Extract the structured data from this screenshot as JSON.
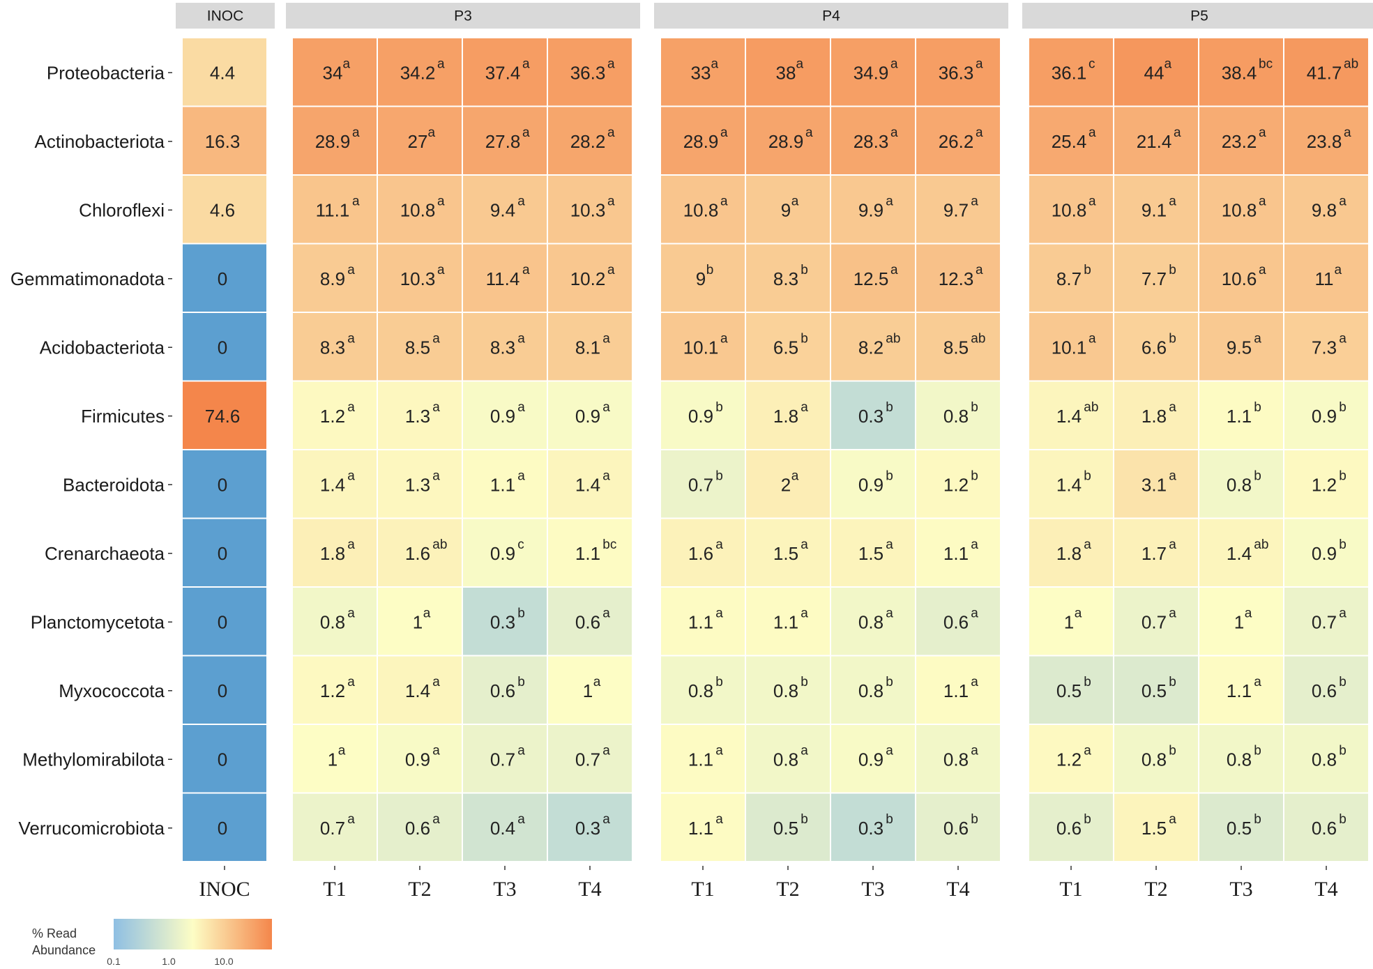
{
  "chart_data": {
    "type": "heatmap",
    "panels": [
      {
        "name": "INOC",
        "columns": [
          "INOC"
        ]
      },
      {
        "name": "P3",
        "columns": [
          "T1",
          "T2",
          "T3",
          "T4"
        ]
      },
      {
        "name": "P4",
        "columns": [
          "T1",
          "T2",
          "T3",
          "T4"
        ]
      },
      {
        "name": "P5",
        "columns": [
          "T1",
          "T2",
          "T3",
          "T4"
        ]
      }
    ],
    "rows": [
      "Proteobacteria",
      "Actinobacteriota",
      "Chloroflexi",
      "Gemmatimonadota",
      "Acidobacteriota",
      "Firmicutes",
      "Bacteroidota",
      "Crenarchaeota",
      "Planctomycetota",
      "Myxococcota",
      "Methylomirabilota",
      "Verrucomicrobiota"
    ],
    "values": [
      [
        4.4,
        34,
        34.2,
        37.4,
        36.3,
        33,
        38,
        34.9,
        36.3,
        36.1,
        44,
        38.4,
        41.7
      ],
      [
        16.3,
        28.9,
        27,
        27.8,
        28.2,
        28.9,
        28.9,
        28.3,
        26.2,
        25.4,
        21.4,
        23.2,
        23.8
      ],
      [
        4.6,
        11.1,
        10.8,
        9.4,
        10.3,
        10.8,
        9,
        9.9,
        9.7,
        10.8,
        9.1,
        10.8,
        9.8
      ],
      [
        0,
        8.9,
        10.3,
        11.4,
        10.2,
        9,
        8.3,
        12.5,
        12.3,
        8.7,
        7.7,
        10.6,
        11
      ],
      [
        0,
        8.3,
        8.5,
        8.3,
        8.1,
        10.1,
        6.5,
        8.2,
        8.5,
        10.1,
        6.6,
        9.5,
        7.3
      ],
      [
        74.6,
        1.2,
        1.3,
        0.9,
        0.9,
        0.9,
        1.8,
        0.3,
        0.8,
        1.4,
        1.8,
        1.1,
        0.9
      ],
      [
        0,
        1.4,
        1.3,
        1.1,
        1.4,
        0.7,
        2,
        0.9,
        1.2,
        1.4,
        3.1,
        0.8,
        1.2
      ],
      [
        0,
        1.8,
        1.6,
        0.9,
        1.1,
        1.6,
        1.5,
        1.5,
        1.1,
        1.8,
        1.7,
        1.4,
        0.9
      ],
      [
        0,
        0.8,
        1,
        0.3,
        0.6,
        1.1,
        1.1,
        0.8,
        0.6,
        1,
        0.7,
        1,
        0.7
      ],
      [
        0,
        1.2,
        1.4,
        0.6,
        1,
        0.8,
        0.8,
        0.8,
        1.1,
        0.5,
        0.5,
        1.1,
        0.6
      ],
      [
        0,
        1,
        0.9,
        0.7,
        0.7,
        1.1,
        0.8,
        0.9,
        0.8,
        1.2,
        0.8,
        0.8,
        0.8
      ],
      [
        0,
        0.7,
        0.6,
        0.4,
        0.3,
        1.1,
        0.5,
        0.3,
        0.6,
        0.6,
        1.5,
        0.5,
        0.6
      ]
    ],
    "letters": [
      [
        "",
        "a",
        "a",
        "a",
        "a",
        "a",
        "a",
        "a",
        "a",
        "c",
        "a",
        "bc",
        "ab"
      ],
      [
        "",
        "a",
        "a",
        "a",
        "a",
        "a",
        "a",
        "a",
        "a",
        "a",
        "a",
        "a",
        "a"
      ],
      [
        "",
        "a",
        "a",
        "a",
        "a",
        "a",
        "a",
        "a",
        "a",
        "a",
        "a",
        "a",
        "a"
      ],
      [
        "",
        "a",
        "a",
        "a",
        "a",
        "b",
        "b",
        "a",
        "a",
        "b",
        "b",
        "a",
        "a"
      ],
      [
        "",
        "a",
        "a",
        "a",
        "a",
        "a",
        "b",
        "ab",
        "ab",
        "a",
        "b",
        "a",
        "a"
      ],
      [
        "",
        "a",
        "a",
        "a",
        "a",
        "b",
        "a",
        "b",
        "b",
        "ab",
        "a",
        "b",
        "b"
      ],
      [
        "",
        "a",
        "a",
        "a",
        "a",
        "b",
        "a",
        "b",
        "b",
        "b",
        "a",
        "b",
        "b"
      ],
      [
        "",
        "a",
        "ab",
        "c",
        "bc",
        "a",
        "a",
        "a",
        "a",
        "a",
        "a",
        "ab",
        "b"
      ],
      [
        "",
        "a",
        "a",
        "b",
        "a",
        "a",
        "a",
        "a",
        "a",
        "a",
        "a",
        "a",
        "a"
      ],
      [
        "",
        "a",
        "a",
        "b",
        "a",
        "b",
        "b",
        "b",
        "a",
        "b",
        "b",
        "a",
        "b"
      ],
      [
        "",
        "a",
        "a",
        "a",
        "a",
        "a",
        "a",
        "a",
        "a",
        "a",
        "b",
        "b",
        "b"
      ],
      [
        "",
        "a",
        "a",
        "a",
        "a",
        "a",
        "b",
        "b",
        "b",
        "b",
        "a",
        "b",
        "b"
      ]
    ],
    "color_scale": {
      "type": "log",
      "domain": [
        0.1,
        1.0,
        10.0,
        74.6
      ],
      "colors": [
        "#8fbfe3",
        "#fdfdc5",
        "#f9c890",
        "#f4864b"
      ],
      "zero_color": "#5c9fd0"
    },
    "legend": {
      "title_lines": [
        "% Read",
        "Abundance"
      ],
      "ticks": [
        "0.1",
        "1.0",
        "10.0"
      ],
      "position": "bottom-left"
    }
  }
}
